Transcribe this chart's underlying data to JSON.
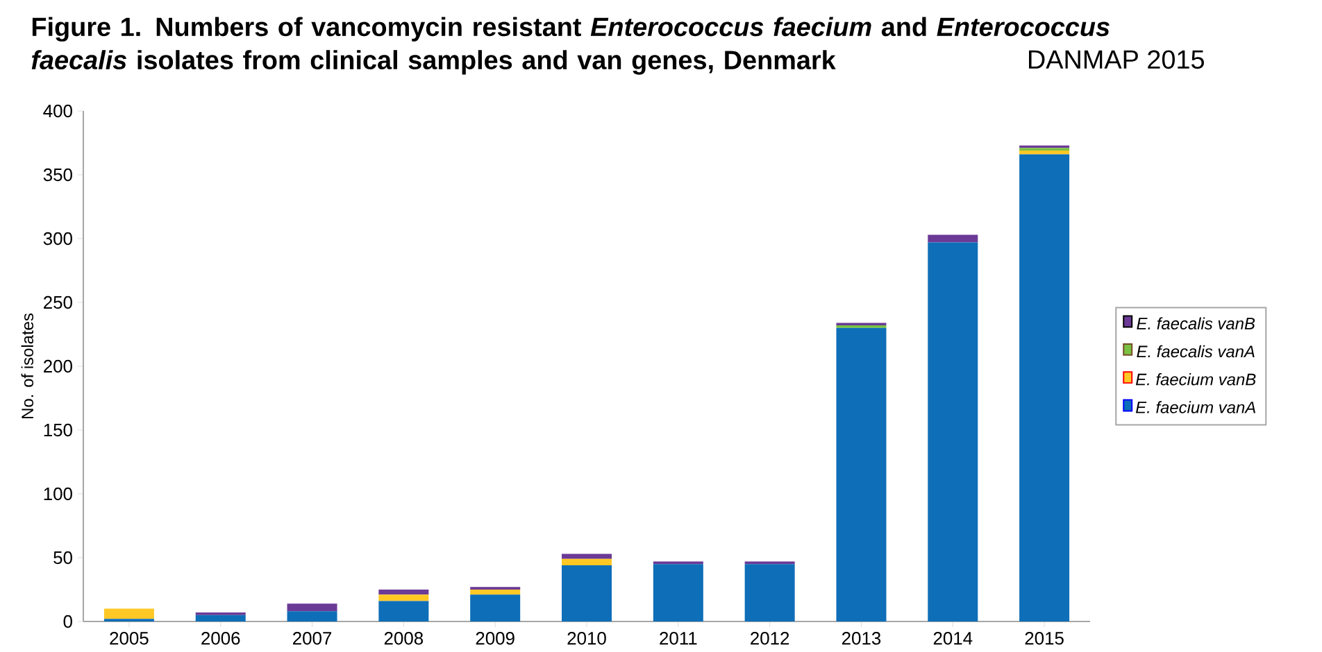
{
  "chart_data": {
    "type": "bar",
    "stacked": true,
    "title": "Figure 1. Numbers of vancomycin resistant *Enterococcus faecium* and *Enterococcus faecalis* isolates from clinical samples and van genes, Denmark",
    "subtitle": "DANMAP 2015",
    "ylabel": "No. of isolates",
    "categories": [
      "2005",
      "2006",
      "2007",
      "2008",
      "2009",
      "2010",
      "2011",
      "2012",
      "2013",
      "2014",
      "2015"
    ],
    "series": [
      {
        "name": "E. faecium vanA",
        "color": "#0e6eb8",
        "values": [
          2,
          5,
          8,
          16,
          21,
          44,
          45,
          45,
          230,
          297,
          366
        ]
      },
      {
        "name": "E. faecium vanB",
        "color": "#ffc825",
        "values": [
          8,
          0,
          0,
          5,
          4,
          5,
          0,
          0,
          0,
          0,
          3
        ]
      },
      {
        "name": "E. faecalis vanA",
        "color": "#7ac143",
        "values": [
          0,
          0,
          0,
          0,
          0,
          0,
          0,
          0,
          2,
          0,
          2
        ]
      },
      {
        "name": "E. faecalis vanB",
        "color": "#6b3a96",
        "values": [
          0,
          2,
          6,
          4,
          2,
          4,
          2,
          2,
          2,
          6,
          2
        ]
      }
    ],
    "ylim": [
      0,
      400
    ],
    "yticks": [
      0,
      50,
      100,
      150,
      200,
      250,
      300,
      350,
      400
    ],
    "legend": "right",
    "grid": false
  }
}
